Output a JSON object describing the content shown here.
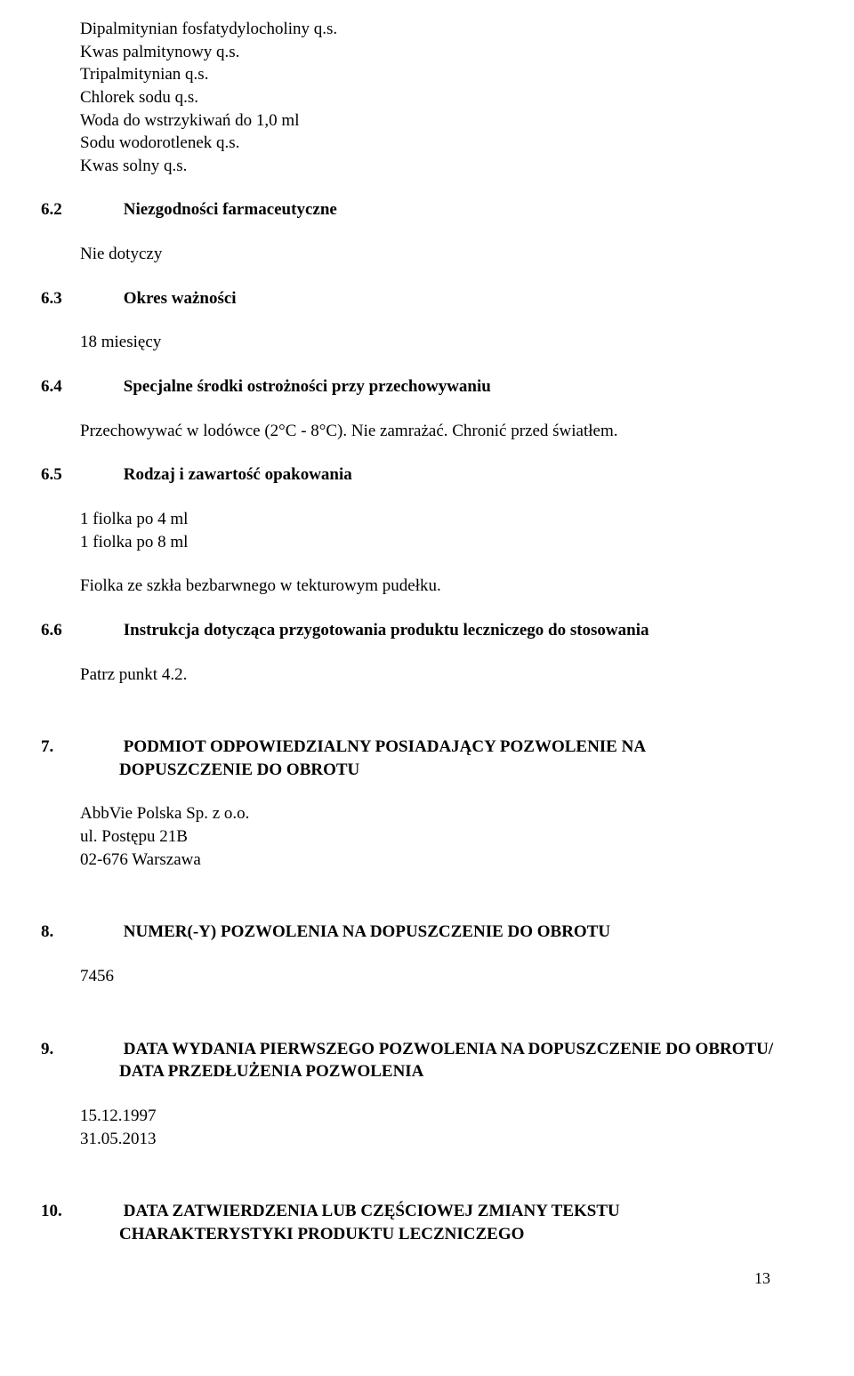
{
  "intro_lines": [
    "Dipalmitynian fosfatydylocholiny q.s.",
    "Kwas palmitynowy q.s.",
    "Tripalmitynian q.s.",
    "Chlorek sodu q.s.",
    "Woda do wstrzykiwań do 1,0 ml",
    "Sodu wodorotlenek q.s.",
    "Kwas solny q.s."
  ],
  "sections": {
    "s62": {
      "num": "6.2",
      "title": "Niezgodności farmaceutyczne",
      "body": "Nie dotyczy"
    },
    "s63": {
      "num": "6.3",
      "title": "Okres ważności",
      "body": "18 miesięcy"
    },
    "s64": {
      "num": "6.4",
      "title": "Specjalne środki ostrożności przy przechowywaniu",
      "body": "Przechowywać w lodówce (2°C - 8°C). Nie zamrażać. Chronić przed światłem."
    },
    "s65": {
      "num": "6.5",
      "title": "Rodzaj i zawartość opakowania",
      "body1": "1 fiolka po 4 ml",
      "body2": "1 fiolka po 8 ml",
      "body3": "Fiolka ze szkła bezbarwnego w tekturowym pudełku."
    },
    "s66": {
      "num": "6.6",
      "title": "Instrukcja dotycząca przygotowania produktu leczniczego do stosowania",
      "body": "Patrz punkt 4.2."
    },
    "s7": {
      "num": "7.",
      "title": "PODMIOT ODPOWIEDZIALNY POSIADAJĄCY POZWOLENIE NA DOPUSZCZENIE DO OBROTU",
      "body1": "AbbVie Polska Sp. z o.o.",
      "body2": "ul. Postępu 21B",
      "body3": "02-676 Warszawa"
    },
    "s8": {
      "num": "8.",
      "title": "NUMER(-Y) POZWOLENIA NA DOPUSZCZENIE DO OBROTU",
      "body": "7456"
    },
    "s9": {
      "num": "9.",
      "title": "DATA WYDANIA PIERWSZEGO POZWOLENIA NA DOPUSZCZENIE DO OBROTU/ DATA PRZEDŁUŻENIA POZWOLENIA",
      "body1": "15.12.1997",
      "body2": "31.05.2013"
    },
    "s10": {
      "num": "10.",
      "title": "DATA ZATWIERDZENIA LUB CZĘŚCIOWEJ ZMIANY TEKSTU CHARAKTERYSTYKI PRODUKTU LECZNICZEGO"
    }
  },
  "page_number": "13"
}
